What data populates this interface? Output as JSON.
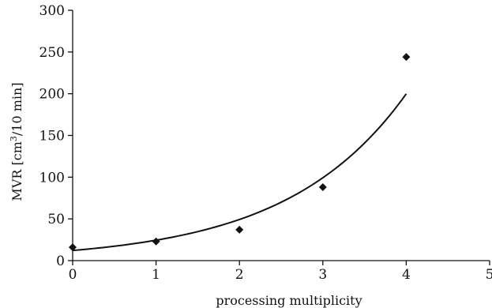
{
  "chart_data": {
    "type": "scatter",
    "title": "",
    "xlabel": "processing multiplicity",
    "ylabel_main": "MVR [cm",
    "ylabel_sup": "3",
    "ylabel_tail": "/10 min]",
    "xlim": [
      0,
      5
    ],
    "ylim": [
      0,
      300
    ],
    "x_ticks": [
      "0",
      "1",
      "2",
      "3",
      "4",
      "5"
    ],
    "y_ticks": [
      "0",
      "50",
      "100",
      "150",
      "200",
      "250",
      "300"
    ],
    "grid": false,
    "series": [
      {
        "marker": "diamond",
        "x": [
          0,
          1,
          2,
          3,
          4
        ],
        "y": [
          16,
          23,
          37,
          88,
          244
        ]
      }
    ],
    "trendline": {
      "type": "exponential",
      "a": 12.16,
      "b": 0.6999,
      "x_range": [
        0,
        4
      ]
    },
    "colors": {
      "marks": "#111111",
      "axis": "#111111"
    }
  }
}
